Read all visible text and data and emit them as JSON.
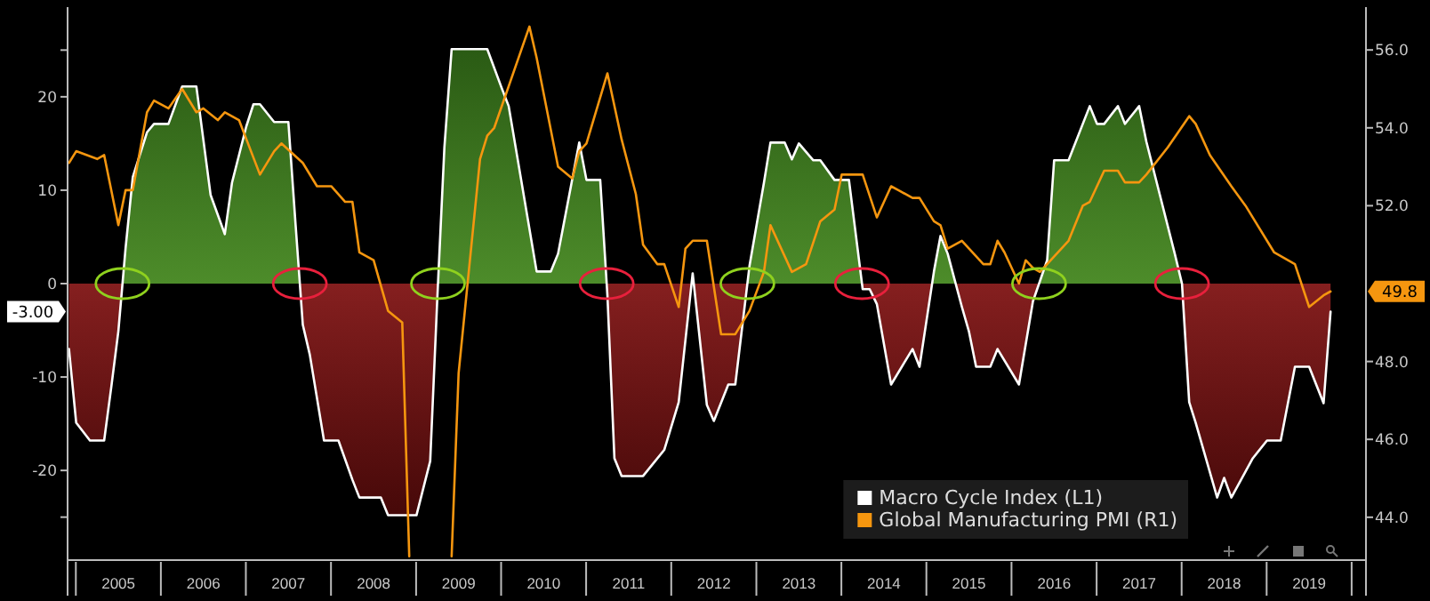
{
  "chart_data": {
    "type": "area",
    "annotations": [
      "-3.00",
      "49.8"
    ],
    "xlim": [
      "2004-11-25",
      "2020-03"
    ],
    "xticks": [
      {
        "value": "2005-07",
        "label": "2005"
      },
      {
        "value": "2006-07",
        "label": "2006"
      },
      {
        "value": "2007-07",
        "label": "2007"
      },
      {
        "value": "2008-07",
        "label": "2008"
      },
      {
        "value": "2009-07",
        "label": "2009"
      },
      {
        "value": "2010-07",
        "label": "2010"
      },
      {
        "value": "2011-07",
        "label": "2011"
      },
      {
        "value": "2012-07",
        "label": "2012"
      },
      {
        "value": "2013-07",
        "label": "2013"
      },
      {
        "value": "2014-07",
        "label": "2014"
      },
      {
        "value": "2015-07",
        "label": "2015"
      },
      {
        "value": "2016-07",
        "label": "2016"
      },
      {
        "value": "2017-07",
        "label": "2017"
      },
      {
        "value": "2018-07",
        "label": "2018"
      },
      {
        "value": "2019-07",
        "label": "2019"
      }
    ],
    "ylim": [
      -29.6,
      29.6
    ],
    "yticks": [
      {
        "value": -25,
        "label": null
      },
      -20,
      -10,
      0,
      10,
      20,
      {
        "value": 25,
        "label": null
      }
    ],
    "y2lim": [
      42.9,
      57.1
    ],
    "y2ticks": [
      {
        "value": 44,
        "label": "44.0"
      },
      {
        "value": 46,
        "label": "46.0"
      },
      {
        "value": 48,
        "label": "48.0"
      },
      {
        "value": 52,
        "label": "52.0"
      },
      {
        "value": 54,
        "label": "54.0"
      },
      {
        "value": 56,
        "label": "56.0"
      }
    ],
    "legend": "bottom right",
    "grid": false,
    "series": [
      {
        "name": "Macro Cycle Index (L1)",
        "color": "#ffffff",
        "x": [
          "2004-12",
          "2005-01",
          "2005-03",
          "2005-05",
          "2005-06",
          "2005-07",
          "2005-08",
          "2005-09",
          "2005-11",
          "2005-12",
          "2006-02",
          "2006-04",
          "2006-06",
          "2006-08",
          "2006-10",
          "2006-11",
          "2007-01",
          "2007-02",
          "2007-03",
          "2007-05",
          "2007-07",
          "2007-08",
          "2007-09",
          "2007-10",
          "2007-12",
          "2008-02",
          "2008-04",
          "2008-05",
          "2008-08",
          "2008-09",
          "2009-01",
          "2009-03",
          "2009-04",
          "2009-05",
          "2009-06",
          "2009-07",
          "2009-11",
          "2010-01",
          "2010-02",
          "2010-06",
          "2010-08",
          "2010-09",
          "2010-12",
          "2011-01",
          "2011-03",
          "2011-04",
          "2011-05",
          "2011-06",
          "2011-09",
          "2011-12",
          "2012-02",
          "2012-04",
          "2012-06",
          "2012-07",
          "2012-09",
          "2012-10",
          "2012-12",
          "2013-02",
          "2013-03",
          "2013-05",
          "2013-06",
          "2013-07",
          "2013-09",
          "2013-10",
          "2013-12",
          "2014-02",
          "2014-04",
          "2014-05",
          "2014-06",
          "2014-08",
          "2014-11",
          "2014-12",
          "2015-02",
          "2015-03",
          "2015-04",
          "2015-06",
          "2015-07",
          "2015-08",
          "2015-10",
          "2015-11",
          "2016-02",
          "2016-04",
          "2016-06",
          "2016-07",
          "2016-09",
          "2016-12",
          "2017-01",
          "2017-02",
          "2017-04",
          "2017-05",
          "2017-07",
          "2017-08",
          "2017-12",
          "2018-01",
          "2018-02",
          "2018-03",
          "2018-06",
          "2018-07",
          "2018-08",
          "2018-11",
          "2019-01",
          "2019-03",
          "2019-05",
          "2019-07",
          "2019-09",
          "2019-10"
        ],
        "values": [
          -7,
          -14.9,
          -16.8,
          -16.8,
          -11,
          -5.1,
          3.8,
          11.4,
          16.2,
          17.1,
          17.1,
          21.1,
          21.1,
          9.5,
          5.3,
          10.8,
          16.8,
          19.2,
          19.2,
          17.3,
          17.3,
          6.3,
          -4.4,
          -7.6,
          -16.8,
          -16.8,
          -21,
          -22.9,
          -22.9,
          -24.8,
          -24.8,
          -19,
          -1.3,
          14.6,
          25.1,
          25.1,
          25.1,
          21,
          19,
          1.3,
          1.3,
          3.2,
          15.1,
          11.1,
          11.1,
          -1.3,
          -18.7,
          -20.6,
          -20.6,
          -17.8,
          -12.7,
          1.1,
          -13,
          -14.7,
          -10.8,
          -10.8,
          1.9,
          10.8,
          15.1,
          15.1,
          13.3,
          15,
          13.2,
          13.2,
          11.1,
          11.1,
          -0.6,
          -0.6,
          -2.2,
          -10.8,
          -7,
          -8.9,
          1.3,
          5.1,
          3.2,
          -2.5,
          -5.1,
          -8.9,
          -8.9,
          -7,
          -10.8,
          -1.9,
          2.5,
          13.2,
          13.2,
          19,
          17.1,
          17.1,
          19,
          17.1,
          19,
          15.2,
          3.2,
          0,
          -12.7,
          -14.9,
          -22.9,
          -20.8,
          -22.9,
          -18.7,
          -16.8,
          -16.8,
          -8.9,
          -8.9,
          -12.8,
          -3
        ]
      },
      {
        "name": "Global Manufacturing PMI (R1)",
        "type": "line",
        "axis": "y2",
        "color": "#f5960f",
        "x": [
          "2004-12",
          "2005-01",
          "2005-04",
          "2005-05",
          "2005-07",
          "2005-08",
          "2005-09",
          "2005-11",
          "2005-12",
          "2006-02",
          "2006-04",
          "2006-06",
          "2006-07",
          "2006-09",
          "2006-10",
          "2006-12",
          "2007-03",
          "2007-05",
          "2007-06",
          "2007-09",
          "2007-11",
          "2008-01",
          "2008-03",
          "2008-04",
          "2008-05",
          "2008-07",
          "2008-09",
          "2008-11",
          "2008-12",
          "2009-02",
          "2009-06",
          "2009-07",
          "2009-10",
          "2009-11",
          "2009-12",
          "2010-05",
          "2010-06",
          "2010-09",
          "2010-11",
          "2010-12",
          "2011-01",
          "2011-04",
          "2011-06",
          "2011-08",
          "2011-09",
          "2011-11",
          "2011-12",
          "2012-02",
          "2012-03",
          "2012-04",
          "2012-06",
          "2012-08",
          "2012-10",
          "2012-12",
          "2013-02",
          "2013-03",
          "2013-06",
          "2013-08",
          "2013-10",
          "2013-12",
          "2014-01",
          "2014-02",
          "2014-04",
          "2014-06",
          "2014-08",
          "2014-09",
          "2014-11",
          "2014-12",
          "2015-02",
          "2015-03",
          "2015-04",
          "2015-06",
          "2015-09",
          "2015-10",
          "2015-11",
          "2015-12",
          "2016-02",
          "2016-03",
          "2016-04",
          "2016-05",
          "2016-09",
          "2016-11",
          "2016-12",
          "2017-02",
          "2017-04",
          "2017-05",
          "2017-07",
          "2017-08",
          "2017-11",
          "2018-02",
          "2018-03",
          "2018-05",
          "2018-08",
          "2018-10",
          "2019-02",
          "2019-05",
          "2019-07",
          "2019-09",
          "2019-10"
        ],
        "values": [
          53.1,
          53.4,
          53.2,
          53.3,
          51.5,
          52.4,
          52.4,
          54.4,
          54.7,
          54.5,
          55.0,
          54.4,
          54.5,
          54.2,
          54.4,
          54.2,
          52.8,
          53.4,
          53.6,
          53.1,
          52.5,
          52.5,
          52.1,
          52.1,
          50.8,
          50.6,
          49.3,
          49.0,
          43.0,
          null,
          43.0,
          47.7,
          53.2,
          53.8,
          54.0,
          56.6,
          55.8,
          53.0,
          52.7,
          53.4,
          53.6,
          55.4,
          53.7,
          52.3,
          51.0,
          50.5,
          50.5,
          49.4,
          50.9,
          51.1,
          51.1,
          48.7,
          48.7,
          49.3,
          50.3,
          51.5,
          50.3,
          50.5,
          51.6,
          51.9,
          52.8,
          52.8,
          52.8,
          51.7,
          52.5,
          52.4,
          52.2,
          52.2,
          51.6,
          51.5,
          50.9,
          51.1,
          50.5,
          50.5,
          51.1,
          50.8,
          50.0,
          50.6,
          50.4,
          50.3,
          51.1,
          52.0,
          52.1,
          52.9,
          52.9,
          52.6,
          52.6,
          52.8,
          53.5,
          54.3,
          54.1,
          53.3,
          52.5,
          52.0,
          50.8,
          50.5,
          49.4,
          49.7,
          49.8
        ]
      }
    ]
  }
}
